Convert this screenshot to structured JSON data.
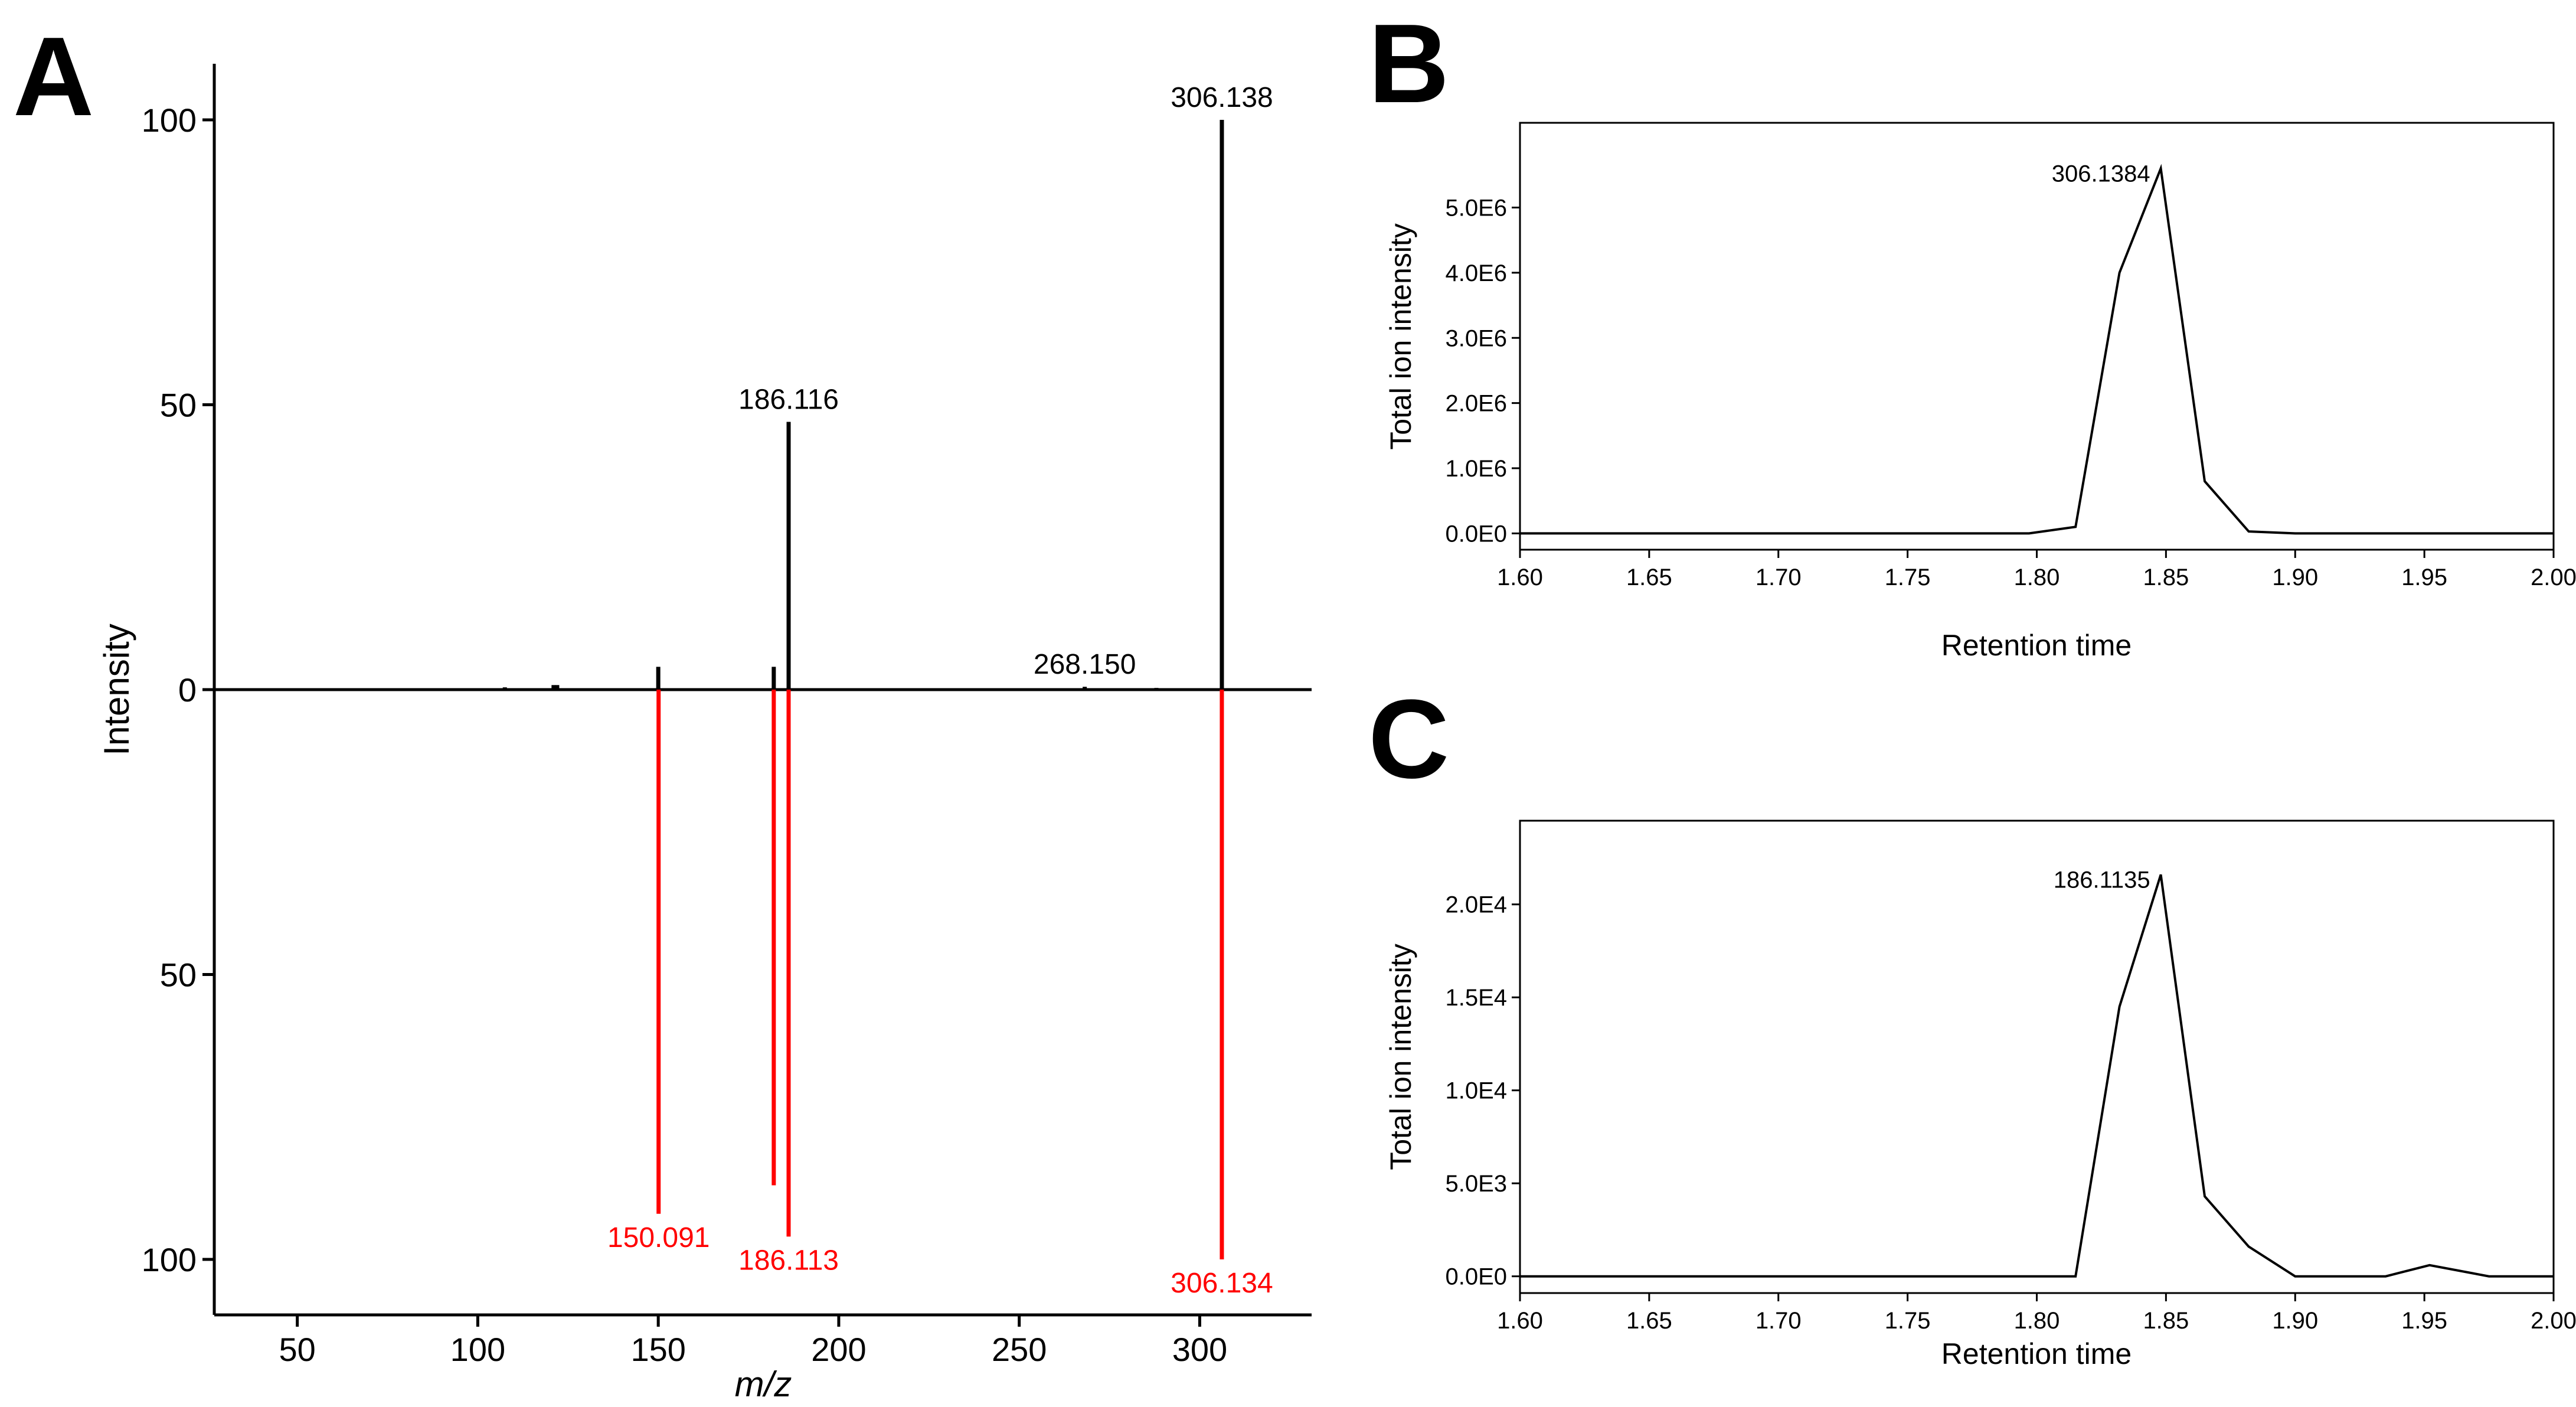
{
  "chart_data": [
    {
      "panel": "A",
      "type": "bar",
      "subtype": "mirror-spectrum",
      "xlabel": "m/z",
      "ylabel": "Intensity",
      "xlim": [
        27,
        331
      ],
      "xticks": [
        50,
        100,
        150,
        200,
        250,
        300
      ],
      "ylim": [
        -109,
        109
      ],
      "yticks": [
        {
          "value": 100,
          "label": "100"
        },
        {
          "value": 50,
          "label": "50"
        },
        {
          "value": 0,
          "label": "0"
        },
        {
          "value": -50,
          "label": "50"
        },
        {
          "value": -100,
          "label": "100"
        }
      ],
      "colors": {
        "top": "#000000",
        "bottom": "#ff0000"
      },
      "series": [
        {
          "name": "top",
          "peaks": [
            {
              "mz": 107.5,
              "intensity": 0.4
            },
            {
              "mz": 121.0,
              "intensity": 0.8
            },
            {
              "mz": 122.0,
              "intensity": 0.8
            },
            {
              "mz": 150.0,
              "intensity": 4.0
            },
            {
              "mz": 182.0,
              "intensity": 4.0
            },
            {
              "mz": 186.116,
              "intensity": 47.0,
              "label": "186.116"
            },
            {
              "mz": 268.15,
              "intensity": 0.5,
              "label": "268.150"
            },
            {
              "mz": 288.0,
              "intensity": 0.3
            },
            {
              "mz": 306.138,
              "intensity": 100.0,
              "label": "306.138"
            }
          ]
        },
        {
          "name": "bottom",
          "peaks": [
            {
              "mz": 150.091,
              "intensity": 92.0,
              "label": "150.091"
            },
            {
              "mz": 182.0,
              "intensity": 87.0
            },
            {
              "mz": 186.113,
              "intensity": 96.0,
              "label": "186.113"
            },
            {
              "mz": 306.134,
              "intensity": 100.0,
              "label": "306.134"
            }
          ]
        }
      ]
    },
    {
      "panel": "B",
      "type": "line",
      "xlabel": "Retention time",
      "ylabel": "Total ion intensity",
      "xlim": [
        1.6,
        2.0
      ],
      "ylim": [
        -250000,
        6300000
      ],
      "xticks": [
        "1.60",
        "1.65",
        "1.70",
        "1.75",
        "1.80",
        "1.85",
        "1.90",
        "1.95",
        "2.00"
      ],
      "yticks": [
        {
          "value": 0,
          "label": "0.0E0"
        },
        {
          "value": 1000000,
          "label": "1.0E6"
        },
        {
          "value": 2000000,
          "label": "2.0E6"
        },
        {
          "value": 3000000,
          "label": "3.0E6"
        },
        {
          "value": 4000000,
          "label": "4.0E6"
        },
        {
          "value": 5000000,
          "label": "5.0E6"
        }
      ],
      "x": [
        1.6,
        1.7,
        1.797,
        1.815,
        1.832,
        1.848,
        1.865,
        1.882,
        1.9,
        1.95,
        2.0
      ],
      "y": [
        0,
        0,
        0,
        100000,
        4000000,
        5600000,
        800000,
        30000,
        0,
        0,
        0
      ],
      "peak_label": {
        "x": 1.848,
        "text": "306.1384"
      }
    },
    {
      "panel": "C",
      "type": "line",
      "xlabel": "Retention time",
      "ylabel": "Total ion intensity",
      "xlim": [
        1.6,
        2.0
      ],
      "ylim": [
        -900,
        24500
      ],
      "xticks": [
        "1.60",
        "1.65",
        "1.70",
        "1.75",
        "1.80",
        "1.85",
        "1.90",
        "1.95",
        "2.00"
      ],
      "yticks": [
        {
          "value": 0,
          "label": "0.0E0"
        },
        {
          "value": 5000,
          "label": "5.0E3"
        },
        {
          "value": 10000,
          "label": "1.0E4"
        },
        {
          "value": 15000,
          "label": "1.5E4"
        },
        {
          "value": 20000,
          "label": "2.0E4"
        }
      ],
      "x": [
        1.6,
        1.7,
        1.815,
        1.832,
        1.848,
        1.865,
        1.882,
        1.9,
        1.935,
        1.952,
        1.975,
        2.0
      ],
      "y": [
        0,
        0,
        0,
        14500,
        21600,
        4300,
        1600,
        0,
        0,
        600,
        0,
        0
      ],
      "peak_label": {
        "x": 1.848,
        "text": "186.1135"
      }
    }
  ]
}
